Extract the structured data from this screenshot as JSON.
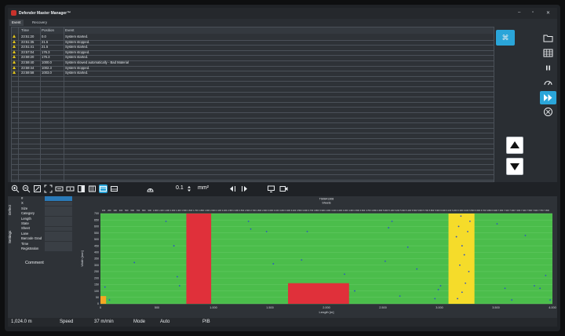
{
  "window": {
    "title": "Defender Master Manager™",
    "min": "–",
    "max": "▫",
    "close": "✕"
  },
  "tabs": [
    "Event Log",
    "Recovery"
  ],
  "eventlog": {
    "columns": [
      "Time",
      "Position",
      "Event"
    ],
    "rows": [
      {
        "time": "23:51:20",
        "position": "0.0",
        "event": "System started."
      },
      {
        "time": "23:51:35",
        "position": "21.5",
        "event": "System stopped."
      },
      {
        "time": "23:51:41",
        "position": "21.5",
        "event": "System started."
      },
      {
        "time": "23:57:04",
        "position": "176.3",
        "event": "System stopped."
      },
      {
        "time": "23:59:20",
        "position": "176.3",
        "event": "System started."
      },
      {
        "time": "23:59:40",
        "position": "1000.0",
        "event": "System slowed automatically - Bad Material"
      },
      {
        "time": "23:59:44",
        "position": "1002.3",
        "event": "System stopped."
      },
      {
        "time": "23:59:58",
        "position": "1003.0",
        "event": "System started."
      }
    ]
  },
  "toolbar": {
    "zoom_value": "0.1",
    "unit": "mm²"
  },
  "leftpanel": {
    "vtab_defect": "Defect",
    "vtab_settings": "Settings",
    "fields": [
      "#",
      "X",
      "Size",
      "Category",
      "Length",
      "State",
      "Sheet",
      "Lane",
      "Barcode Grad",
      "Time",
      "Registration"
    ],
    "comment": "Comment"
  },
  "chart_data": {
    "type": "scatter",
    "title": "TS0841308",
    "subtitle": "Sheets",
    "xlabel": "Length [m]",
    "ylabel": "Width [mm]",
    "xlim": [
      0,
      4000
    ],
    "ylim": [
      0,
      700
    ],
    "x_bottom_ticks": [
      "0",
      "500",
      "1.000",
      "1.500",
      "2.000",
      "2.500",
      "3.000",
      "3.500",
      "4.000"
    ],
    "x_top_ticks": [
      "100",
      "200",
      "300",
      "400",
      "500",
      "600",
      "700",
      "800",
      "900",
      "1.000",
      "1.100",
      "1.200",
      "1.300",
      "1.400",
      "1.500",
      "1.600",
      "1.700",
      "1.800",
      "1.900",
      "2.000",
      "2.100",
      "2.200",
      "2.300",
      "2.400",
      "2.500",
      "2.600",
      "2.700",
      "2.800",
      "2.900",
      "3.000",
      "3.100",
      "3.200",
      "3.300",
      "3.400",
      "3.500",
      "3.600",
      "3.700",
      "3.800",
      "3.900",
      "4.000",
      "4.100",
      "4.200",
      "4.300",
      "4.400",
      "4.500",
      "4.600",
      "4.700",
      "4.800",
      "4.900",
      "5.000",
      "5.100",
      "5.200",
      "5.300",
      "5.400",
      "5.500",
      "5.600",
      "5.700",
      "5.800",
      "5.900",
      "6.000",
      "6.100",
      "6.200",
      "6.300",
      "6.400",
      "6.500",
      "6.600",
      "6.700",
      "6.800",
      "6.900",
      "7.000",
      "7.100",
      "7.200",
      "7.300",
      "7.400",
      "7.500",
      "7.600",
      "7.700",
      "7.800"
    ],
    "y_ticks": [
      "0",
      "50",
      "100",
      "150",
      "200",
      "250",
      "300",
      "350",
      "400",
      "450",
      "500",
      "550",
      "600",
      "650",
      "700"
    ],
    "background_color": "#4bbd4b",
    "zones": [
      {
        "x0": 760,
        "x1": 980,
        "y0": 0,
        "y1": 700,
        "color": "#e0303a"
      },
      {
        "x0": 1660,
        "x1": 2200,
        "y0": 0,
        "y1": 160,
        "color": "#e0303a"
      },
      {
        "x0": 3080,
        "x1": 3310,
        "y0": 0,
        "y1": 700,
        "color": "#f5dc2a"
      },
      {
        "x0": 0,
        "x1": 50,
        "y0": 0,
        "y1": 60,
        "color": "#f5a623"
      }
    ],
    "points_color": "#2b50c8",
    "points": [
      [
        40,
        130
      ],
      [
        80,
        30
      ],
      [
        300,
        320
      ],
      [
        580,
        640
      ],
      [
        650,
        450
      ],
      [
        680,
        210
      ],
      [
        700,
        140
      ],
      [
        1310,
        640
      ],
      [
        1330,
        580
      ],
      [
        1470,
        560
      ],
      [
        1530,
        310
      ],
      [
        1780,
        340
      ],
      [
        1830,
        560
      ],
      [
        2160,
        230
      ],
      [
        2250,
        100
      ],
      [
        2520,
        330
      ],
      [
        2550,
        590
      ],
      [
        2580,
        640
      ],
      [
        2650,
        60
      ],
      [
        2720,
        440
      ],
      [
        2800,
        270
      ],
      [
        2960,
        40
      ],
      [
        2990,
        110
      ],
      [
        3010,
        140
      ],
      [
        3510,
        620
      ],
      [
        3580,
        120
      ],
      [
        3640,
        30
      ],
      [
        3760,
        530
      ],
      [
        3840,
        140
      ],
      [
        3890,
        120
      ],
      [
        3940,
        220
      ],
      [
        3980,
        30
      ],
      [
        3150,
        520
      ],
      [
        3170,
        600
      ],
      [
        3200,
        450
      ],
      [
        3220,
        380
      ],
      [
        3180,
        300
      ],
      [
        3260,
        250
      ],
      [
        3230,
        160
      ],
      [
        3200,
        90
      ],
      [
        3160,
        40
      ],
      [
        3250,
        560
      ],
      [
        3270,
        640
      ],
      [
        3190,
        680
      ]
    ],
    "grid": true,
    "legend": "none"
  },
  "statusbar": {
    "position": "1,024.0 m",
    "speed_label": "Speed",
    "speed_value": "37 m/min",
    "mode_label": "Mode",
    "mode_value": "Auto",
    "pib": "PIB"
  }
}
